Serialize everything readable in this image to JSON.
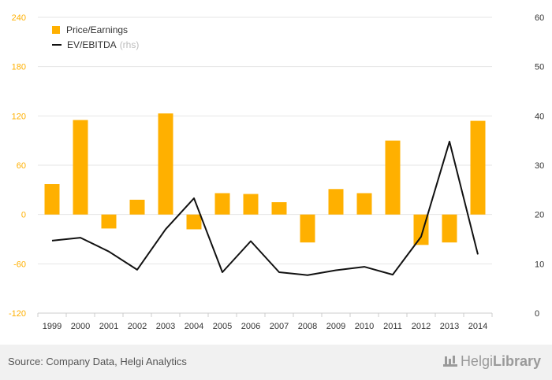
{
  "chart_data": {
    "type": "bar",
    "categories": [
      "1999",
      "2000",
      "2001",
      "2002",
      "2003",
      "2004",
      "2005",
      "2006",
      "2007",
      "2008",
      "2009",
      "2010",
      "2011",
      "2012",
      "2013",
      "2014"
    ],
    "series": [
      {
        "name": "Price/Earnings",
        "type": "bar",
        "axis": "left",
        "color": "#ffb000",
        "values": [
          37,
          115,
          -17,
          18,
          123,
          -18,
          26,
          25,
          15,
          -34,
          31,
          26,
          90,
          -37,
          -34,
          114
        ]
      },
      {
        "name": "EV/EBITDA",
        "name_suffix": "(rhs)",
        "type": "line",
        "axis": "right",
        "color": "#111111",
        "values": [
          14.7,
          15.3,
          12.5,
          8.8,
          17.0,
          23.3,
          8.3,
          14.6,
          8.3,
          7.7,
          8.7,
          9.4,
          7.8,
          15.5,
          34.8,
          11.9
        ]
      }
    ],
    "y_left": {
      "ticks": [
        -120,
        -60,
        0,
        60,
        120,
        180,
        240
      ],
      "ylim": [
        -120,
        240
      ],
      "tick_color": "#ffb000"
    },
    "y_right": {
      "ticks": [
        0,
        10,
        20,
        30,
        40,
        50,
        60
      ],
      "ylim": [
        0,
        60
      ]
    },
    "grid": true,
    "legend": "top-left"
  },
  "source_text": "Source: Company Data, Helgi Analytics",
  "brand": {
    "name_a": "Helgi",
    "name_b": "Library"
  }
}
